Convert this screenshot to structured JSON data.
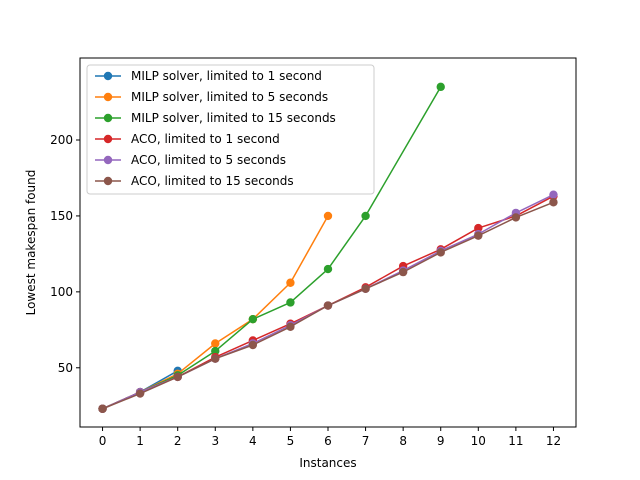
{
  "chart_data": {
    "type": "line",
    "title": "",
    "xlabel": "Instances",
    "ylabel": "Lowest makespan found",
    "xlim": [
      -0.6,
      12.6
    ],
    "ylim": [
      11,
      254
    ],
    "xticks": [
      0,
      1,
      2,
      3,
      4,
      5,
      6,
      7,
      8,
      9,
      10,
      11,
      12
    ],
    "yticks": [
      50,
      100,
      150,
      200
    ],
    "grid": false,
    "legend_position": "top-left",
    "series": [
      {
        "name": "MILP solver, limited to 1 second",
        "color": "#1f77b4",
        "x": [
          0,
          1,
          2
        ],
        "y": [
          23,
          34,
          48
        ]
      },
      {
        "name": "MILP solver, limited to 5 seconds",
        "color": "#ff7f0e",
        "x": [
          0,
          1,
          2,
          3,
          4,
          5,
          6
        ],
        "y": [
          23,
          34,
          46,
          66,
          82,
          106,
          150
        ]
      },
      {
        "name": "MILP solver, limited to 15 seconds",
        "color": "#2ca02c",
        "x": [
          0,
          1,
          2,
          3,
          4,
          5,
          6,
          7,
          9
        ],
        "y": [
          23,
          34,
          45,
          61,
          82,
          93,
          115,
          150,
          235
        ]
      },
      {
        "name": "ACO, limited to 1 second",
        "color": "#d62728",
        "x": [
          0,
          1,
          2,
          3,
          4,
          5,
          6,
          7,
          8,
          9,
          10,
          11,
          12
        ],
        "y": [
          23,
          34,
          44,
          57,
          68,
          79,
          91,
          103,
          117,
          128,
          142,
          150,
          163
        ]
      },
      {
        "name": "ACO, limited to 5 seconds",
        "color": "#9467bd",
        "x": [
          0,
          1,
          2,
          3,
          4,
          5,
          6,
          7,
          8,
          9,
          10,
          11,
          12
        ],
        "y": [
          23,
          34,
          44,
          56,
          66,
          78,
          91,
          102,
          114,
          127,
          138,
          152,
          164
        ]
      },
      {
        "name": "ACO, limited to 15 seconds",
        "color": "#8c564b",
        "x": [
          0,
          1,
          2,
          3,
          4,
          5,
          6,
          7,
          8,
          9,
          10,
          11,
          12
        ],
        "y": [
          23,
          33,
          44,
          56,
          65,
          77,
          91,
          102,
          113,
          126,
          137,
          149,
          159
        ]
      }
    ]
  }
}
